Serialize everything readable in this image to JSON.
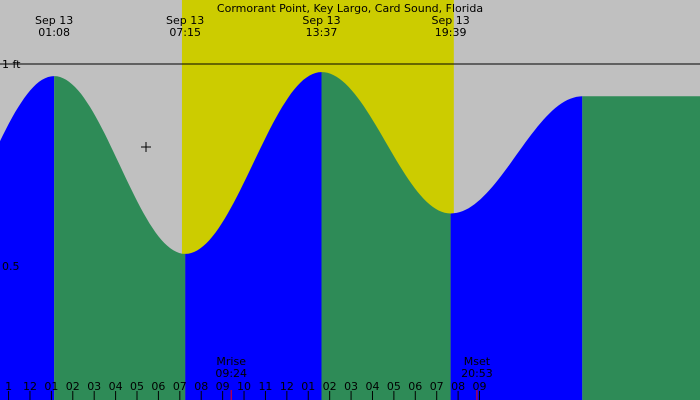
{
  "chart_data": {
    "type": "area",
    "title": "Cormorant Point, Key Largo, Card Sound, Florida",
    "y_axis": {
      "unit": "ft",
      "labels": [
        {
          "value": 1.0,
          "text": "1 ft"
        },
        {
          "value": 0.5,
          "text": "0.5"
        }
      ]
    },
    "x_axis": {
      "start_hour": -0.4,
      "end_hour": 32.3,
      "hour_ticks": [
        {
          "hour": 0,
          "text": "1"
        },
        {
          "hour": 1,
          "text": "12"
        },
        {
          "hour": 2,
          "text": "01"
        },
        {
          "hour": 3,
          "text": "02"
        },
        {
          "hour": 4,
          "text": "03"
        },
        {
          "hour": 5,
          "text": "04"
        },
        {
          "hour": 6,
          "text": "05"
        },
        {
          "hour": 7,
          "text": "06"
        },
        {
          "hour": 8,
          "text": "07"
        },
        {
          "hour": 9,
          "text": "08"
        },
        {
          "hour": 10,
          "text": "09"
        },
        {
          "hour": 11,
          "text": "10"
        },
        {
          "hour": 12,
          "text": "11"
        },
        {
          "hour": 13,
          "text": "12"
        },
        {
          "hour": 14,
          "text": "01"
        },
        {
          "hour": 15,
          "text": "02"
        },
        {
          "hour": 16,
          "text": "03"
        },
        {
          "hour": 17,
          "text": "04"
        },
        {
          "hour": 18,
          "text": "05"
        },
        {
          "hour": 19,
          "text": "06"
        },
        {
          "hour": 20,
          "text": "07"
        },
        {
          "hour": 21,
          "text": "08"
        },
        {
          "hour": 22,
          "text": "09"
        }
      ]
    },
    "daylight": {
      "sunrise_hour": 8.1,
      "sunset_hour": 20.8
    },
    "tide_events": [
      {
        "hour": 2.13,
        "height": 0.97,
        "type": "high",
        "date": "Sep 13",
        "time": "01:08"
      },
      {
        "hour": 8.25,
        "height": 0.53,
        "type": "low",
        "date": "Sep 13",
        "time": "07:15"
      },
      {
        "hour": 14.62,
        "height": 0.98,
        "type": "high",
        "date": "Sep 13",
        "time": "13:37"
      },
      {
        "hour": 20.65,
        "height": 0.63,
        "type": "low",
        "date": "Sep 13",
        "time": "19:39"
      },
      {
        "hour": 26.8,
        "height": 0.92,
        "type": "high"
      }
    ],
    "moon": [
      {
        "label": "Mrise",
        "time": "09:24",
        "hour": 10.4
      },
      {
        "label": "Mset",
        "time": "20:53",
        "hour": 21.88
      }
    ],
    "colors": {
      "rising": "#0000ff",
      "falling": "#2e8b57",
      "daylight": "#cccc00",
      "night": "#c0c0c0",
      "moon_tick": "#ff0000"
    }
  }
}
